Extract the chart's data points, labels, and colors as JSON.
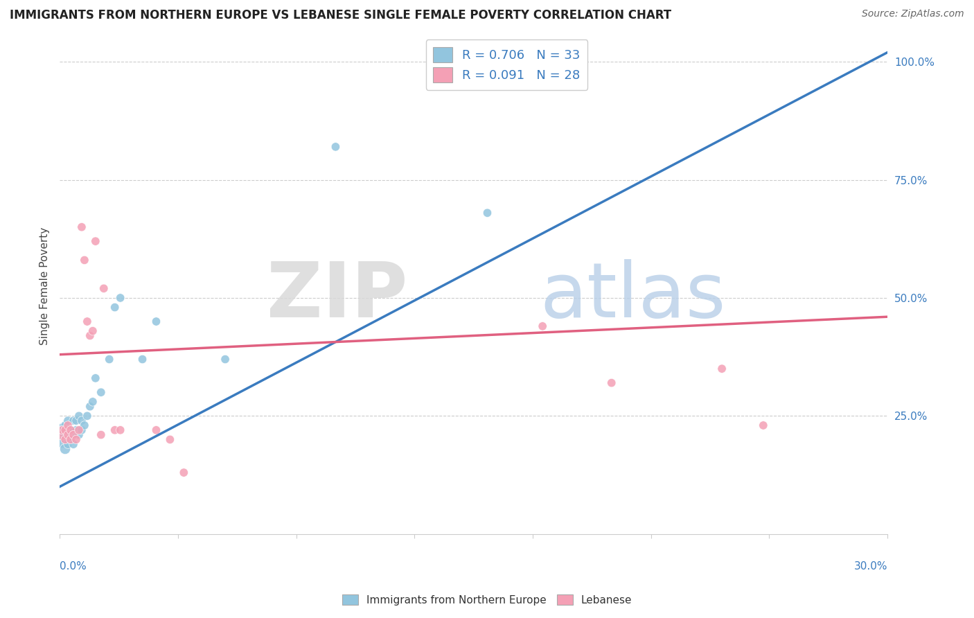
{
  "title": "IMMIGRANTS FROM NORTHERN EUROPE VS LEBANESE SINGLE FEMALE POVERTY CORRELATION CHART",
  "source": "Source: ZipAtlas.com",
  "ylabel": "Single Female Poverty",
  "blue_R": "0.706",
  "blue_N": "33",
  "pink_R": "0.091",
  "pink_N": "28",
  "blue_color": "#92c5de",
  "pink_color": "#f4a0b5",
  "blue_line_color": "#3a7bbf",
  "pink_line_color": "#e06080",
  "xmin": 0.0,
  "xmax": 0.3,
  "ymin": 0.0,
  "ymax": 1.05,
  "blue_scatter_x": [
    0.001,
    0.001,
    0.002,
    0.002,
    0.002,
    0.003,
    0.003,
    0.003,
    0.004,
    0.004,
    0.005,
    0.005,
    0.005,
    0.006,
    0.006,
    0.007,
    0.007,
    0.008,
    0.008,
    0.009,
    0.01,
    0.011,
    0.012,
    0.013,
    0.015,
    0.018,
    0.02,
    0.022,
    0.03,
    0.035,
    0.06,
    0.1,
    0.155
  ],
  "blue_scatter_y": [
    0.2,
    0.22,
    0.18,
    0.21,
    0.23,
    0.19,
    0.22,
    0.24,
    0.2,
    0.22,
    0.19,
    0.21,
    0.24,
    0.22,
    0.24,
    0.21,
    0.25,
    0.22,
    0.24,
    0.23,
    0.25,
    0.27,
    0.28,
    0.33,
    0.3,
    0.37,
    0.48,
    0.5,
    0.37,
    0.45,
    0.37,
    0.82,
    0.68
  ],
  "blue_scatter_sizes": [
    300,
    200,
    120,
    100,
    80,
    80,
    80,
    80,
    80,
    80,
    80,
    80,
    80,
    80,
    80,
    80,
    80,
    80,
    80,
    80,
    80,
    80,
    80,
    80,
    80,
    80,
    80,
    80,
    80,
    80,
    80,
    80,
    80
  ],
  "pink_scatter_x": [
    0.001,
    0.001,
    0.002,
    0.002,
    0.003,
    0.003,
    0.004,
    0.004,
    0.005,
    0.006,
    0.007,
    0.008,
    0.009,
    0.01,
    0.011,
    0.012,
    0.013,
    0.015,
    0.016,
    0.02,
    0.022,
    0.035,
    0.04,
    0.045,
    0.175,
    0.2,
    0.24,
    0.255
  ],
  "pink_scatter_y": [
    0.21,
    0.22,
    0.2,
    0.22,
    0.21,
    0.23,
    0.2,
    0.22,
    0.21,
    0.2,
    0.22,
    0.65,
    0.58,
    0.45,
    0.42,
    0.43,
    0.62,
    0.21,
    0.52,
    0.22,
    0.22,
    0.22,
    0.2,
    0.13,
    0.44,
    0.32,
    0.35,
    0.23
  ],
  "pink_scatter_sizes": [
    120,
    80,
    80,
    80,
    80,
    80,
    80,
    80,
    80,
    80,
    80,
    80,
    80,
    80,
    80,
    80,
    80,
    80,
    80,
    80,
    80,
    80,
    80,
    80,
    80,
    80,
    80,
    80
  ],
  "blue_trend_x0": 0.0,
  "blue_trend_y0": 0.1,
  "blue_trend_x1": 0.3,
  "blue_trend_y1": 1.02,
  "pink_trend_x0": 0.0,
  "pink_trend_y0": 0.38,
  "pink_trend_x1": 0.3,
  "pink_trend_y1": 0.46
}
